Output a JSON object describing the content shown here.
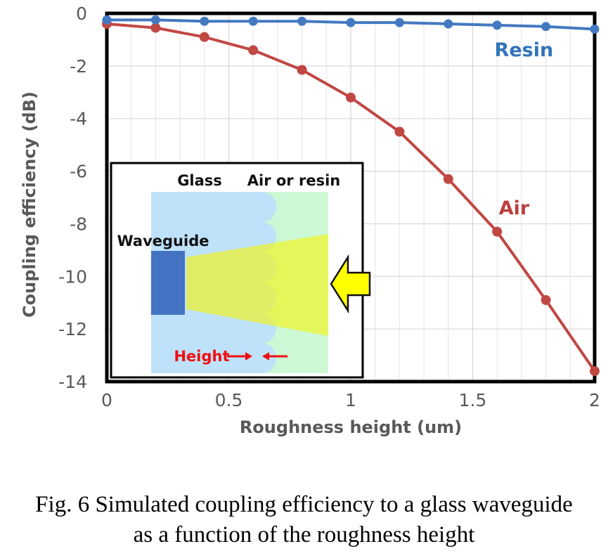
{
  "figure": {
    "caption": {
      "line1": "Fig. 6 Simulated coupling efficiency to a glass waveguide",
      "line2": "as a function of the roughness height"
    }
  },
  "chart_data": {
    "type": "line",
    "title": "",
    "xlabel": "Roughness height (um)",
    "ylabel": "Coupling efficiency (dB)",
    "xlim": [
      0,
      2
    ],
    "ylim": [
      -14,
      0
    ],
    "x_ticks": [
      0,
      0.5,
      1,
      1.5,
      2
    ],
    "x_tick_labels": [
      "0",
      "0.5",
      "1",
      "1.5",
      "2"
    ],
    "y_ticks": [
      0,
      -2,
      -4,
      -6,
      -8,
      -10,
      -12,
      -14
    ],
    "y_tick_labels": [
      "0",
      "-2",
      "-4",
      "-6",
      "-8",
      "-10",
      "-12",
      "-14"
    ],
    "grid": {
      "vertical_minor_step": 0.1,
      "vertical_major_step": 0.5,
      "horizontal_step": 2,
      "shown": true
    },
    "legend_position": "inline-labels",
    "x": [
      0,
      0.2,
      0.4,
      0.6,
      0.8,
      1.0,
      1.2,
      1.4,
      1.6,
      1.8,
      2.0
    ],
    "series": [
      {
        "name": "Air",
        "color": "#c14743",
        "label_color": "#bc403e",
        "marker_radius": 7,
        "values": [
          -0.4,
          -0.55,
          -0.9,
          -1.4,
          -2.15,
          -3.2,
          -4.5,
          -6.3,
          -8.3,
          -10.9,
          -13.6
        ],
        "label_pos": {
          "x": 1.67,
          "y": -7.4
        }
      },
      {
        "name": "Resin",
        "color": "#4379c1",
        "label_color": "#3273b9",
        "marker_radius": 6.5,
        "values": [
          -0.25,
          -0.25,
          -0.3,
          -0.3,
          -0.3,
          -0.35,
          -0.35,
          -0.4,
          -0.45,
          -0.5,
          -0.6
        ],
        "label_pos": {
          "x": 1.71,
          "y": -1.39
        }
      }
    ]
  },
  "inset": {
    "labels": {
      "glass": "Glass",
      "medium": "Air or resin",
      "waveguide": "Waveguide",
      "height": "Height"
    },
    "colors": {
      "glass_fill": "#bee2f9",
      "medium_fill": "#cdf8d6",
      "waveguide_fill": "#4573c4",
      "beam_fill": "#f2f41c",
      "arrow_fill": "#ffff00",
      "height_label": "#f10e0e"
    }
  }
}
